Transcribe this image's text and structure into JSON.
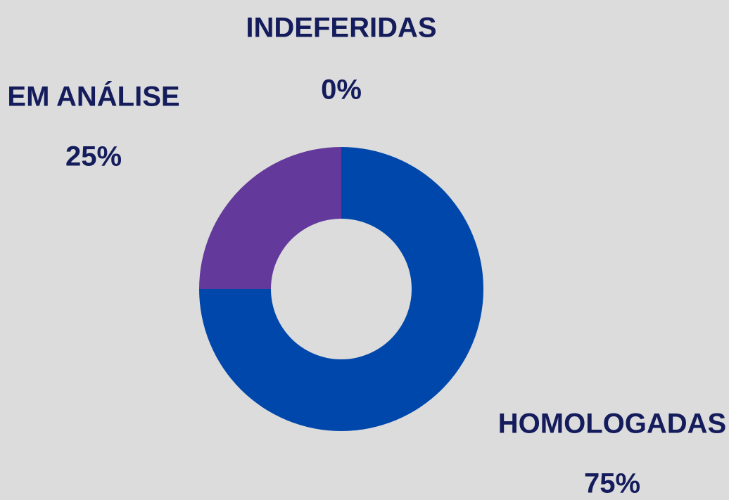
{
  "chart_data": {
    "type": "donut",
    "categories": [
      "HOMOLOGADAS",
      "EM ANÁLISE",
      "INDEFERIDAS"
    ],
    "values": [
      75,
      25,
      0
    ],
    "value_labels": [
      "75%",
      "25%",
      "0%"
    ],
    "colors": [
      "#0047ab",
      "#63399b",
      null
    ]
  }
}
